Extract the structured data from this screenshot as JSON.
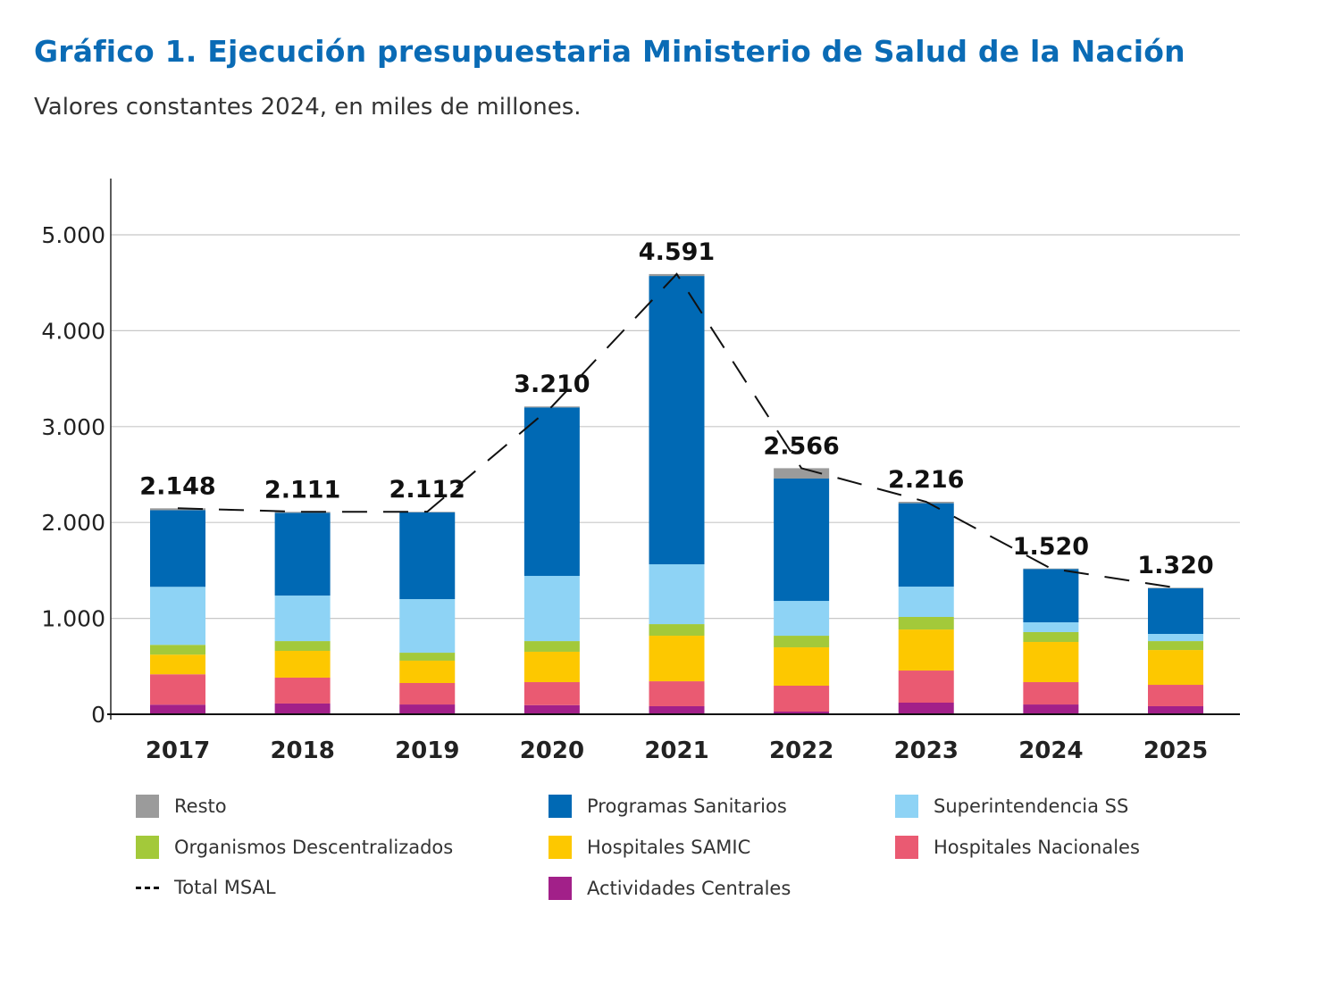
{
  "header": {
    "title": "Gráfico 1. Ejecución presupuestaria Ministerio de Salud de la Nación",
    "subtitle": "Valores constantes 2024, en miles de millones."
  },
  "chart_data": {
    "type": "bar",
    "stacked": true,
    "title": "Gráfico 1. Ejecución presupuestaria Ministerio de Salud de la Nación",
    "subtitle": "Valores constantes 2024, en miles de millones.",
    "xlabel": "",
    "ylabel": "",
    "ylim": [
      0,
      5000
    ],
    "yticks": [
      0,
      1000,
      2000,
      3000,
      4000,
      5000
    ],
    "ytick_labels": [
      "0",
      "1.000",
      "2.000",
      "3.000",
      "4.000",
      "5.000"
    ],
    "grid": true,
    "legend_position": "bottom",
    "categories": [
      "2017",
      "2018",
      "2019",
      "2020",
      "2021",
      "2022",
      "2023",
      "2024",
      "2025"
    ],
    "series": [
      {
        "name": "Actividades Centrales",
        "color": "#a22089",
        "values": [
          100,
          112,
          102,
          95,
          84,
          28,
          121,
          102,
          84
        ]
      },
      {
        "name": "Hospitales Nacionales",
        "color": "#ea5a72",
        "values": [
          317,
          270,
          224,
          240,
          260,
          270,
          335,
          233,
          223
        ]
      },
      {
        "name": "Hospitales SAMIC",
        "color": "#fdc800",
        "values": [
          205,
          279,
          233,
          317,
          475,
          400,
          428,
          419,
          363
        ]
      },
      {
        "name": "Organismos Descentralizados",
        "color": "#a3c93a",
        "values": [
          102,
          102,
          83,
          111,
          121,
          121,
          131,
          103,
          93
        ]
      },
      {
        "name": "Superintendencia SS",
        "color": "#8ed3f5",
        "values": [
          605,
          475,
          559,
          680,
          624,
          363,
          316,
          102,
          75
        ]
      },
      {
        "name": "Programas Sanitarios",
        "color": "#0069b4",
        "values": [
          799,
          863,
          905,
          1757,
          3007,
          1276,
          870,
          556,
          477
        ]
      },
      {
        "name": "Resto",
        "color": "#9b9b9b",
        "values": [
          20,
          10,
          6,
          10,
          20,
          108,
          15,
          5,
          5
        ]
      }
    ],
    "line_series": {
      "name": "Total MSAL",
      "style": "dashed",
      "color": "#111111",
      "values": [
        2148,
        2111,
        2112,
        3210,
        4591,
        2566,
        2216,
        1520,
        1320
      ],
      "labels": [
        "2.148",
        "2.111",
        "2.112",
        "3.210",
        "4.591",
        "2.566",
        "2.216",
        "1.520",
        "1.320"
      ]
    }
  },
  "legend": {
    "items": [
      {
        "label": "Resto",
        "color": "#9b9b9b",
        "kind": "box"
      },
      {
        "label": "Programas Sanitarios",
        "color": "#0069b4",
        "kind": "box"
      },
      {
        "label": "Superintendencia SS",
        "color": "#8ed3f5",
        "kind": "box"
      },
      {
        "label": "Organismos Descentralizados",
        "color": "#a3c93a",
        "kind": "box"
      },
      {
        "label": "Hospitales SAMIC",
        "color": "#fdc800",
        "kind": "box"
      },
      {
        "label": "Hospitales Nacionales",
        "color": "#ea5a72",
        "kind": "box"
      },
      {
        "label": "Total MSAL",
        "color": "#111111",
        "kind": "dash"
      },
      {
        "label": "Actividades Centrales",
        "color": "#a22089",
        "kind": "box"
      }
    ]
  }
}
